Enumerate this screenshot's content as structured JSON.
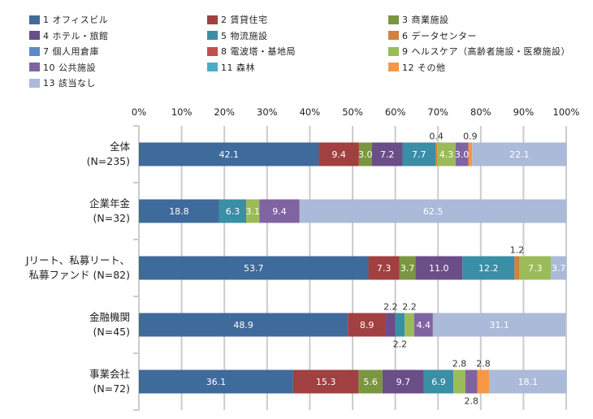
{
  "chart_data": {
    "type": "bar",
    "orientation": "horizontal",
    "stacked": true,
    "title": "",
    "xlabel": "",
    "ylabel": "",
    "xlim": [
      0,
      100
    ],
    "x_ticks": [
      "0%",
      "10%",
      "20%",
      "30%",
      "40%",
      "50%",
      "60%",
      "70%",
      "80%",
      "90%",
      "100%"
    ],
    "grid": true,
    "legend_position": "top",
    "categories": [
      [
        "全体",
        "(N=235)"
      ],
      [
        "企業年金",
        "(N=32)"
      ],
      [
        "Jリート、私募リート、",
        "私募ファンド (N=82)"
      ],
      [
        "金融機関",
        "(N=45)"
      ],
      [
        "事業会社",
        "(N=72)"
      ]
    ],
    "series": [
      {
        "name": "1 オフィスビル",
        "color": "#3F6A9C",
        "values": [
          42.1,
          18.8,
          53.7,
          48.9,
          36.1
        ]
      },
      {
        "name": "2 賃貸住宅",
        "color": "#A04040",
        "values": [
          9.4,
          0,
          7.3,
          8.9,
          15.3
        ]
      },
      {
        "name": "3 商業施設",
        "color": "#7A9640",
        "values": [
          3.0,
          0,
          3.7,
          0,
          5.6
        ]
      },
      {
        "name": "4 ホテル・旅館",
        "color": "#6A4E88",
        "values": [
          7.2,
          0,
          11.0,
          2.2,
          9.7
        ]
      },
      {
        "name": "5 物流施設",
        "color": "#3A8EA5",
        "values": [
          7.7,
          6.3,
          12.2,
          2.2,
          6.9
        ]
      },
      {
        "name": "6 データセンター",
        "color": "#D3813E",
        "values": [
          0.4,
          0,
          1.2,
          0,
          0
        ]
      },
      {
        "name": "7 個人用倉庫",
        "color": "#5B8ACB",
        "values": [
          0,
          0,
          0,
          0,
          0
        ]
      },
      {
        "name": "8 電波塔・基地局",
        "color": "#C0504D",
        "values": [
          0,
          0,
          0,
          0,
          0
        ]
      },
      {
        "name": "9 ヘルスケア（高齢者施設・医療施設）",
        "color": "#9BBB59",
        "values": [
          4.3,
          3.1,
          7.3,
          2.2,
          2.8
        ]
      },
      {
        "name": "10 公共施設",
        "color": "#8064A2",
        "values": [
          3.0,
          9.4,
          0,
          4.4,
          2.8
        ]
      },
      {
        "name": "11 森林",
        "color": "#4BACC6",
        "values": [
          0,
          0,
          0,
          0,
          0
        ]
      },
      {
        "name": "12 その他",
        "color": "#F79646",
        "values": [
          0.9,
          0,
          0,
          0,
          2.8
        ]
      },
      {
        "name": "13 該当なし",
        "color": "#ABBAD8",
        "values": [
          22.1,
          62.5,
          3.7,
          31.1,
          18.1
        ]
      }
    ],
    "segment_labels": [
      [
        {
          "s": 0,
          "t": "42.1",
          "pos": "in"
        },
        {
          "s": 1,
          "t": "9.4",
          "pos": "in"
        },
        {
          "s": 2,
          "t": "3.0",
          "pos": "in"
        },
        {
          "s": 3,
          "t": "7.2",
          "pos": "in"
        },
        {
          "s": 4,
          "t": "7.7",
          "pos": "in"
        },
        {
          "s": 5,
          "t": "0.4",
          "pos": "above"
        },
        {
          "s": 8,
          "t": "4.3",
          "pos": "in"
        },
        {
          "s": 9,
          "t": "3.0",
          "pos": "in"
        },
        {
          "s": 11,
          "t": "0.9",
          "pos": "above"
        },
        {
          "s": 12,
          "t": "22.1",
          "pos": "in"
        }
      ],
      [
        {
          "s": 0,
          "t": "18.8",
          "pos": "in"
        },
        {
          "s": 4,
          "t": "6.3",
          "pos": "in"
        },
        {
          "s": 8,
          "t": "3.1",
          "pos": "in"
        },
        {
          "s": 9,
          "t": "9.4",
          "pos": "in"
        },
        {
          "s": 12,
          "t": "62.5",
          "pos": "in"
        }
      ],
      [
        {
          "s": 0,
          "t": "53.7",
          "pos": "in"
        },
        {
          "s": 1,
          "t": "7.3",
          "pos": "in"
        },
        {
          "s": 2,
          "t": "3.7",
          "pos": "in"
        },
        {
          "s": 3,
          "t": "11.0",
          "pos": "in"
        },
        {
          "s": 4,
          "t": "12.2",
          "pos": "in"
        },
        {
          "s": 5,
          "t": "1.2",
          "pos": "above"
        },
        {
          "s": 8,
          "t": "7.3",
          "pos": "in"
        },
        {
          "s": 12,
          "t": "3.7",
          "pos": "in"
        }
      ],
      [
        {
          "s": 0,
          "t": "48.9",
          "pos": "in"
        },
        {
          "s": 1,
          "t": "8.9",
          "pos": "in"
        },
        {
          "s": 3,
          "t": "2.2",
          "pos": "above"
        },
        {
          "s": 4,
          "t": "2.2",
          "pos": "below"
        },
        {
          "s": 8,
          "t": "2.2",
          "pos": "above"
        },
        {
          "s": 9,
          "t": "4.4",
          "pos": "in"
        },
        {
          "s": 12,
          "t": "31.1",
          "pos": "in"
        }
      ],
      [
        {
          "s": 0,
          "t": "36.1",
          "pos": "in"
        },
        {
          "s": 1,
          "t": "15.3",
          "pos": "in"
        },
        {
          "s": 2,
          "t": "5.6",
          "pos": "in"
        },
        {
          "s": 3,
          "t": "9.7",
          "pos": "in"
        },
        {
          "s": 4,
          "t": "6.9",
          "pos": "in"
        },
        {
          "s": 8,
          "t": "2.8",
          "pos": "above"
        },
        {
          "s": 9,
          "t": "2.8",
          "pos": "below"
        },
        {
          "s": 11,
          "t": "2.8",
          "pos": "above"
        },
        {
          "s": 12,
          "t": "18.1",
          "pos": "in"
        }
      ]
    ]
  }
}
